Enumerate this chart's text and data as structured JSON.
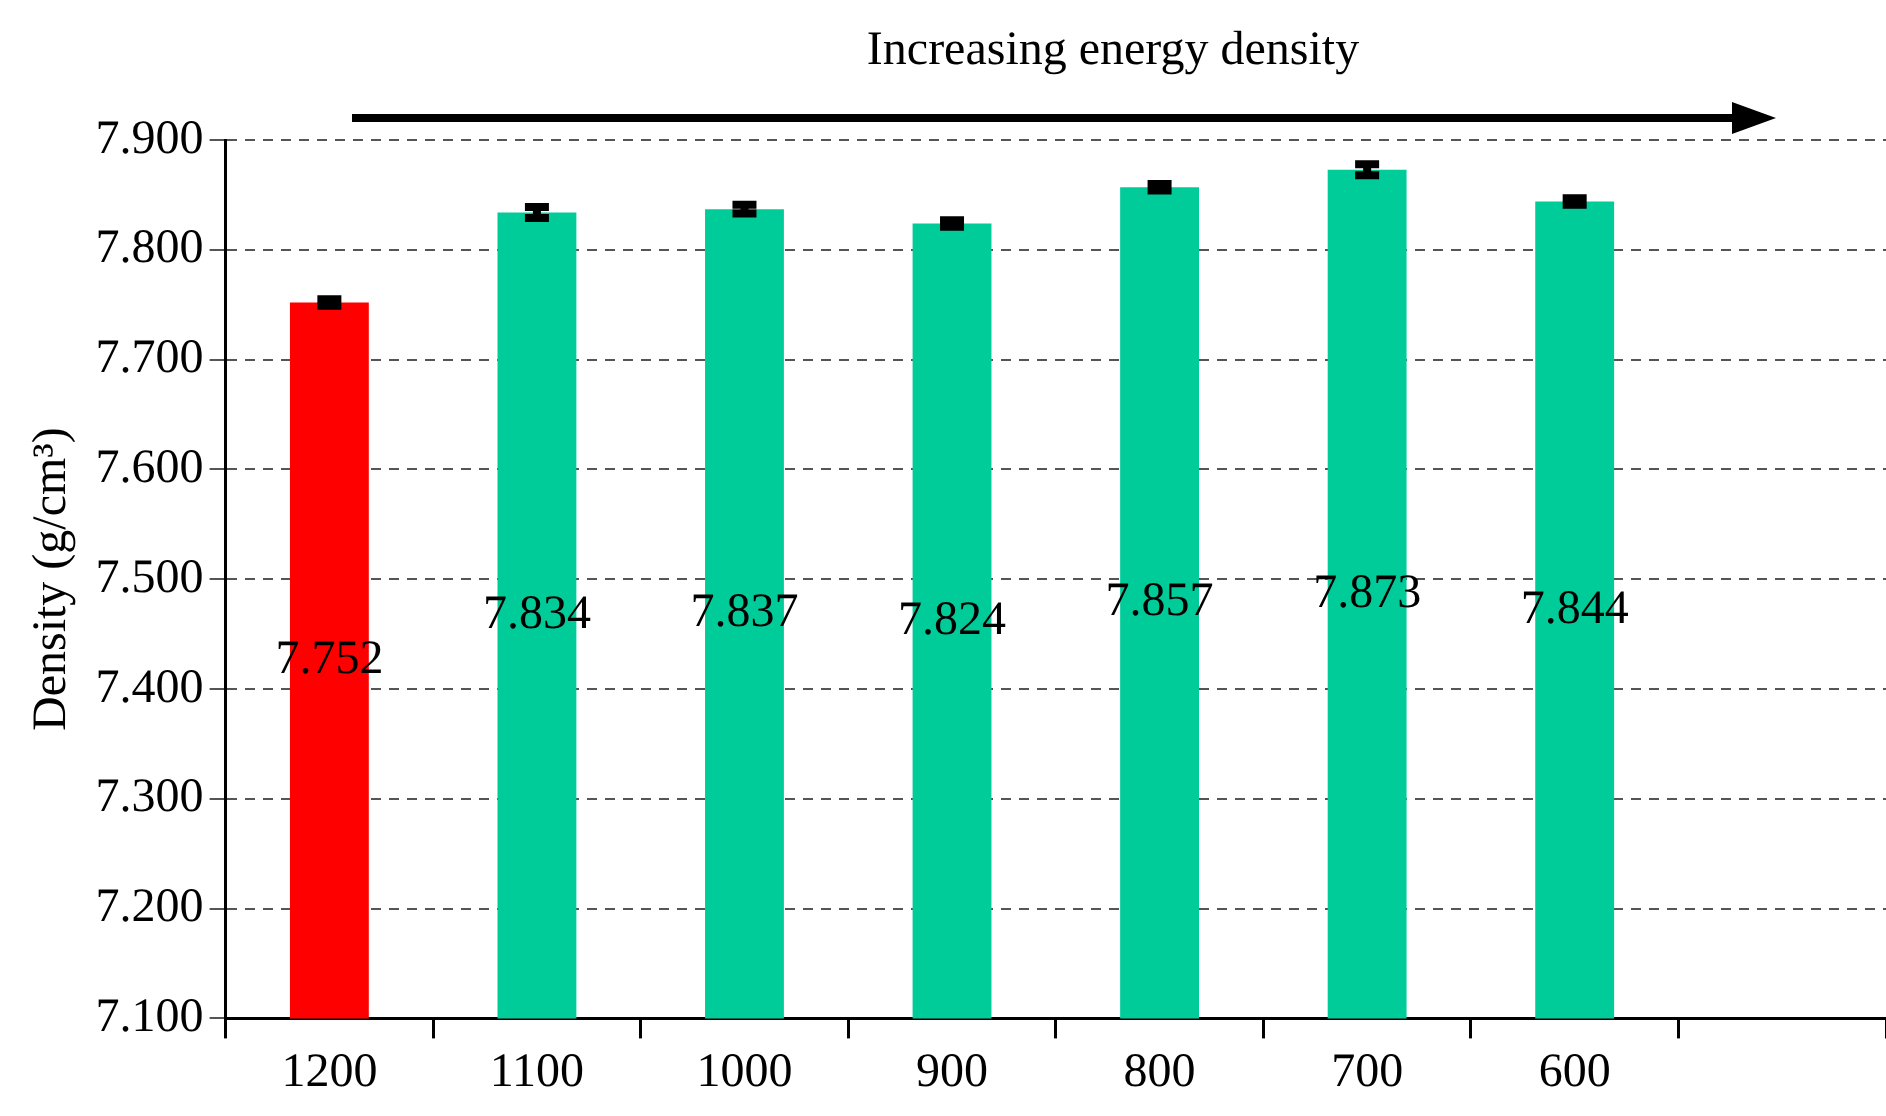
{
  "chart_data": {
    "type": "bar",
    "ylabel": "Density (g/cm³)",
    "annotations": [
      "Increasing energy density"
    ],
    "categories": [
      "1200",
      "1100",
      "1000",
      "900",
      "800",
      "700",
      "600",
      null
    ],
    "values": [
      7.752,
      7.834,
      7.837,
      7.824,
      7.857,
      7.873,
      7.844,
      null
    ],
    "colors": [
      "#ff0000",
      "#00cc99",
      "#00cc99",
      "#00cc99",
      "#00cc99",
      "#00cc99",
      "#00cc99",
      "#00cc99"
    ],
    "errors": [
      0.003,
      0.005,
      0.004,
      0.003,
      0.003,
      0.005,
      0.003,
      null
    ],
    "ylim": [
      7.1,
      7.9
    ],
    "yticks": [
      {
        "value": 7.1,
        "label": "7.100"
      },
      {
        "value": 7.2,
        "label": "7.200"
      },
      {
        "value": 7.3,
        "label": "7.300"
      },
      {
        "value": 7.4,
        "label": "7.400"
      },
      {
        "value": 7.5,
        "label": "7.500"
      },
      {
        "value": 7.6,
        "label": "7.600"
      },
      {
        "value": 7.7,
        "label": "7.700"
      },
      {
        "value": 7.8,
        "label": "7.800"
      },
      {
        "value": 7.9,
        "label": "7.900"
      }
    ],
    "grid": "y",
    "data_labels": true,
    "legend": false
  }
}
